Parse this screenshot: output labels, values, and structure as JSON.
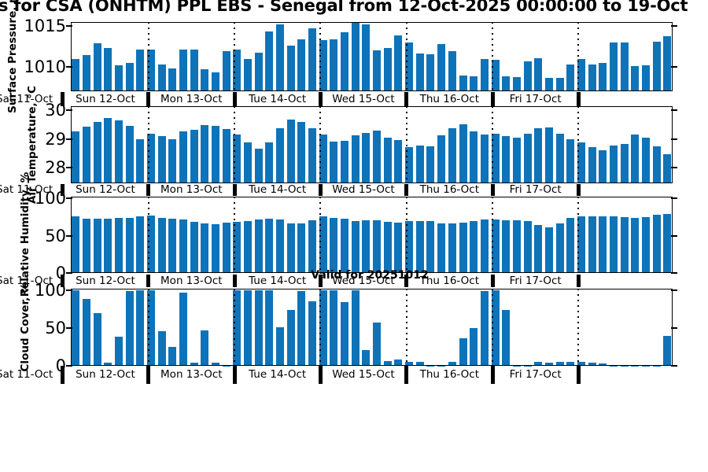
{
  "title": {
    "visible_text": "s for CSA (ONHTM) PPL EBS  - Senegal from 12-Oct-2025 00:00:00 to 19-Oct"
  },
  "annotation": {
    "text": "Valid for 20251012"
  },
  "colors": {
    "bar": "#0e73b8",
    "frame": "#000000",
    "background": "#ffffff"
  },
  "x_axis": {
    "pre_label": "Sat 11-Oct",
    "day_labels": [
      "Sun 12-Oct",
      "Mon 13-Oct",
      "Tue 14-Oct",
      "Wed 15-Oct",
      "Thu 16-Oct",
      "Fri 17-Oct"
    ]
  },
  "chart_data": [
    {
      "type": "bar",
      "ylabel": "Surface Pressure, mb",
      "ylim": [
        1007.0,
        1015.5
      ],
      "yticks": [
        {
          "v": 1015,
          "label": "1015"
        },
        {
          "v": 1010,
          "label": "1010"
        }
      ],
      "values": [
        1011.0,
        1011.4,
        1012.9,
        1012.3,
        1010.2,
        1010.5,
        1012.1,
        1012.1,
        1010.3,
        1009.8,
        1012.1,
        1012.1,
        1009.7,
        1009.3,
        1011.9,
        1012.1,
        1011.0,
        1011.7,
        1014.3,
        1015.2,
        1012.6,
        1013.4,
        1014.7,
        1013.3,
        1013.4,
        1014.2,
        1015.5,
        1015.2,
        1012.0,
        1012.3,
        1013.9,
        1013.0,
        1011.6,
        1011.5,
        1012.8,
        1011.9,
        1008.9,
        1008.8,
        1011.0,
        1010.9,
        1008.8,
        1008.7,
        1010.7,
        1011.1,
        1008.6,
        1008.6,
        1010.3,
        1011.0,
        1010.3,
        1010.5,
        1013.0,
        1013.0,
        1010.1,
        1010.2,
        1013.1,
        1013.8
      ]
    },
    {
      "type": "bar",
      "ylabel": "Air Temperature, °C",
      "ylim": [
        27.45,
        30.14
      ],
      "yticks": [
        {
          "v": 30,
          "label": "30"
        },
        {
          "v": 29,
          "label": "29"
        },
        {
          "v": 28,
          "label": "28"
        }
      ],
      "values": [
        29.25,
        29.43,
        29.59,
        29.74,
        29.65,
        29.45,
        29.0,
        29.18,
        29.09,
        28.98,
        29.25,
        29.32,
        29.47,
        29.45,
        29.34,
        29.14,
        28.88,
        28.65,
        28.88,
        29.36,
        29.68,
        29.59,
        29.38,
        29.14,
        28.9,
        28.93,
        29.12,
        29.22,
        29.28,
        29.03,
        28.97,
        28.7,
        28.76,
        28.73,
        29.12,
        29.38,
        29.52,
        29.25,
        29.14,
        29.18,
        29.09,
        29.05,
        29.18,
        29.36,
        29.41,
        29.18,
        29.0,
        28.88,
        28.7,
        28.61,
        28.76,
        28.82,
        29.14,
        29.05,
        28.73,
        28.47
      ]
    },
    {
      "type": "bar",
      "ylabel": "Relative Humidity, %",
      "ylim": [
        -0.4,
        102.6
      ],
      "yticks": [
        {
          "v": 100,
          "label": "100"
        },
        {
          "v": 50,
          "label": "50"
        },
        {
          "v": 0,
          "label": "0"
        }
      ],
      "values": [
        76,
        73,
        73,
        73,
        74,
        74,
        76,
        77,
        74,
        73,
        72,
        69,
        67,
        65,
        68,
        69,
        70,
        72,
        73,
        72,
        66,
        66,
        71,
        76,
        74,
        73,
        70,
        71,
        71,
        69,
        68,
        70,
        70,
        70,
        67,
        66,
        68,
        70,
        72,
        72,
        71,
        71,
        70,
        64,
        61,
        66,
        74,
        76,
        76,
        76,
        76,
        75,
        74,
        75,
        78,
        79
      ]
    },
    {
      "type": "bar",
      "ylabel": "Cloud Cover, %",
      "ylim": [
        -0.5,
        101.6
      ],
      "yticks": [
        {
          "v": 100,
          "label": "100"
        },
        {
          "v": 50,
          "label": "50"
        },
        {
          "v": 0,
          "label": "0"
        }
      ],
      "values": [
        100,
        88,
        69,
        4,
        38,
        98,
        100,
        100,
        45,
        24,
        96,
        4,
        46,
        4,
        0,
        100,
        100,
        100,
        100,
        51,
        74,
        98,
        85,
        100,
        100,
        84,
        100,
        20,
        57,
        6,
        8,
        5,
        5,
        0,
        0,
        5,
        36,
        50,
        98,
        100,
        73,
        0,
        0,
        5,
        4,
        5,
        5,
        5,
        4,
        3,
        0,
        0,
        0,
        0,
        0,
        39
      ]
    }
  ]
}
